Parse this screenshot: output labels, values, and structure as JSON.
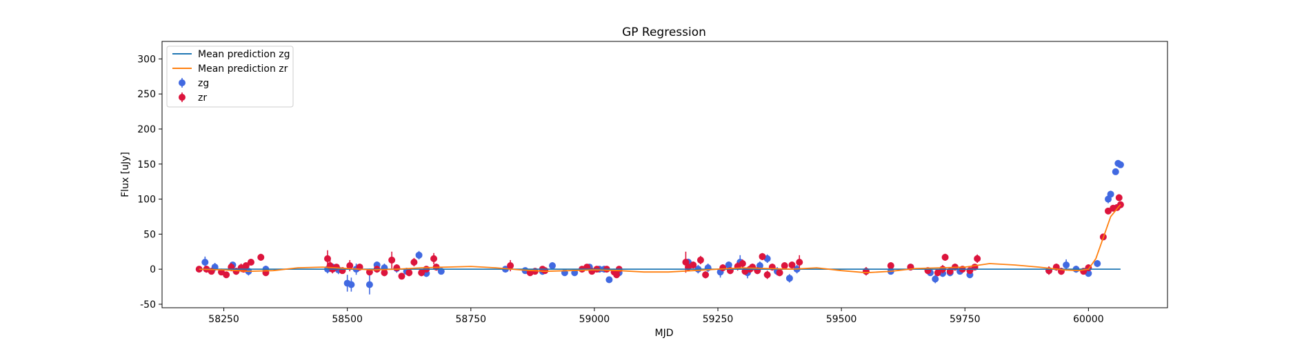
{
  "chart_data": {
    "type": "scatter",
    "title": "GP Regression",
    "xlabel": "MJD",
    "ylabel": "Flux [uJy]",
    "xlim": [
      58125,
      60160
    ],
    "ylim": [
      -55,
      325
    ],
    "xticks": [
      58250,
      58500,
      58750,
      59000,
      59250,
      59500,
      59750,
      60000
    ],
    "yticks": [
      -50,
      0,
      50,
      100,
      150,
      200,
      250,
      300
    ],
    "grid": false,
    "legend_position": "top-left",
    "legend": [
      {
        "label": "Mean prediction zg",
        "kind": "line",
        "color": "#1f77b4"
      },
      {
        "label": "Mean prediction zr",
        "kind": "line",
        "color": "#ff7f0e"
      },
      {
        "label": "zg",
        "kind": "errorbar",
        "color": "#4169e1"
      },
      {
        "label": "zr",
        "kind": "errorbar",
        "color": "#dc143c"
      }
    ],
    "series": [
      {
        "name": "Mean prediction zg",
        "kind": "line",
        "color": "#1f77b4",
        "x": [
          58200,
          60065
        ],
        "y": [
          0,
          0
        ]
      },
      {
        "name": "Mean prediction zr",
        "kind": "line",
        "color": "#ff7f0e",
        "x": [
          58200,
          58250,
          58300,
          58350,
          58400,
          58450,
          58500,
          58550,
          58600,
          58650,
          58700,
          58750,
          58800,
          58850,
          58900,
          58950,
          59000,
          59050,
          59100,
          59150,
          59200,
          59250,
          59300,
          59350,
          59400,
          59450,
          59500,
          59550,
          59600,
          59650,
          59700,
          59750,
          59800,
          59850,
          59900,
          59950,
          59980,
          60000,
          60015,
          60030,
          60045,
          60060,
          60065
        ],
        "y": [
          0,
          -1,
          -3,
          -2,
          2,
          3,
          1,
          -1,
          0,
          2,
          3,
          4,
          2,
          -1,
          -3,
          -2,
          -1,
          -2,
          -4,
          -4,
          -2,
          0,
          2,
          1,
          0,
          2,
          -2,
          -5,
          -3,
          1,
          2,
          3,
          8,
          6,
          3,
          -1,
          -2,
          0,
          15,
          45,
          75,
          88,
          92
        ]
      },
      {
        "name": "zg",
        "kind": "errorbar",
        "color": "#4169e1",
        "x": [
          58212,
          58232,
          58268,
          58300,
          58335,
          58460,
          58470,
          58482,
          58500,
          58508,
          58518,
          58545,
          58560,
          58575,
          58600,
          58620,
          58645,
          58660,
          58690,
          58820,
          58860,
          58895,
          58915,
          58940,
          58960,
          58990,
          59010,
          59020,
          59030,
          59050,
          59190,
          59210,
          59230,
          59255,
          59272,
          59295,
          59310,
          59335,
          59350,
          59370,
          59395,
          59410,
          59550,
          59600,
          59640,
          59680,
          59690,
          59705,
          59720,
          59740,
          59760,
          59920,
          59955,
          59975,
          60000,
          60018,
          60040,
          60045,
          60055,
          60060,
          60065
        ],
        "y": [
          10,
          3,
          6,
          -3,
          0,
          0,
          3,
          -1,
          -20,
          -22,
          0,
          -22,
          6,
          2,
          1,
          -3,
          20,
          -6,
          -3,
          0,
          -2,
          -3,
          5,
          -5,
          -5,
          3,
          0,
          0,
          -15,
          -5,
          10,
          0,
          2,
          -4,
          6,
          10,
          -5,
          5,
          15,
          -3,
          -13,
          0,
          -3,
          -3,
          3,
          -5,
          -14,
          -6,
          -5,
          -3,
          -8,
          -2,
          6,
          0,
          -6,
          8,
          100,
          107,
          139,
          151,
          149
        ],
        "err": [
          8,
          6,
          4,
          6,
          5,
          6,
          5,
          6,
          12,
          10,
          8,
          14,
          5,
          6,
          6,
          5,
          6,
          5,
          4,
          4,
          4,
          5,
          5,
          4,
          4,
          4,
          4,
          4,
          4,
          4,
          5,
          6,
          6,
          8,
          5,
          10,
          8,
          6,
          6,
          6,
          6,
          6,
          4,
          4,
          4,
          4,
          6,
          5,
          5,
          4,
          4,
          5,
          8,
          5,
          4,
          5,
          6,
          5,
          4,
          4,
          4
        ]
      },
      {
        "name": "zr",
        "kind": "errorbar",
        "color": "#dc143c",
        "x": [
          58200,
          58215,
          58225,
          58245,
          58255,
          58265,
          58275,
          58285,
          58290,
          58295,
          58305,
          58325,
          58335,
          58460,
          58465,
          58470,
          58478,
          58490,
          58505,
          58525,
          58545,
          58560,
          58575,
          58590,
          58600,
          58610,
          58625,
          58635,
          58650,
          58660,
          58675,
          58680,
          58830,
          58870,
          58880,
          58895,
          58900,
          58975,
          58985,
          58995,
          59005,
          59025,
          59040,
          59045,
          59050,
          59185,
          59190,
          59200,
          59215,
          59225,
          59260,
          59275,
          59290,
          59300,
          59305,
          59315,
          59320,
          59330,
          59340,
          59350,
          59360,
          59375,
          59385,
          59400,
          59415,
          59550,
          59600,
          59640,
          59675,
          59695,
          59705,
          59710,
          59720,
          59730,
          59745,
          59760,
          59770,
          59775,
          59920,
          59935,
          59945,
          59990,
          60000,
          60030,
          60040,
          60050,
          60058,
          60062,
          60065
        ],
        "y": [
          0,
          0,
          -3,
          -4,
          -8,
          3,
          -3,
          2,
          0,
          5,
          10,
          17,
          -5,
          15,
          5,
          0,
          3,
          -2,
          5,
          3,
          -4,
          0,
          -5,
          13,
          2,
          -10,
          -5,
          10,
          -5,
          0,
          15,
          3,
          5,
          -5,
          -3,
          0,
          -2,
          0,
          3,
          -3,
          0,
          0,
          -4,
          -8,
          0,
          10,
          3,
          6,
          13,
          -8,
          2,
          -2,
          4,
          8,
          -3,
          0,
          3,
          -2,
          18,
          -8,
          3,
          -5,
          5,
          6,
          10,
          -3,
          5,
          3,
          -2,
          -5,
          0,
          17,
          -3,
          3,
          0,
          -2,
          3,
          15,
          -2,
          3,
          -3,
          -3,
          2,
          46,
          83,
          87,
          88,
          102,
          92
        ],
        "err": [
          4,
          5,
          4,
          4,
          4,
          6,
          5,
          6,
          4,
          4,
          4,
          5,
          4,
          12,
          8,
          6,
          4,
          4,
          8,
          5,
          4,
          5,
          5,
          12,
          5,
          4,
          5,
          6,
          5,
          4,
          8,
          5,
          8,
          4,
          4,
          4,
          4,
          4,
          4,
          4,
          4,
          4,
          4,
          4,
          4,
          15,
          6,
          5,
          6,
          5,
          5,
          5,
          6,
          6,
          5,
          5,
          5,
          5,
          5,
          6,
          5,
          5,
          5,
          5,
          10,
          6,
          5,
          4,
          4,
          5,
          6,
          5,
          5,
          5,
          4,
          4,
          4,
          6,
          6,
          5,
          5,
          4,
          5,
          4,
          4,
          4,
          4,
          5,
          5
        ]
      }
    ]
  }
}
